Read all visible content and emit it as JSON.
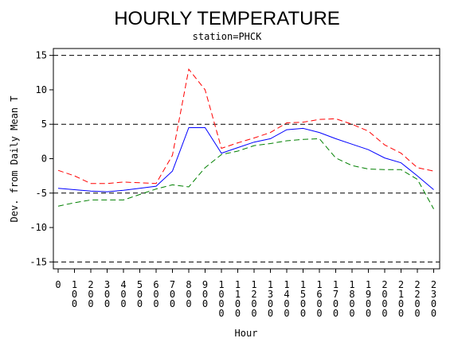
{
  "chart_data": {
    "type": "line",
    "title": "HOURLY TEMPERATURE",
    "subtitle": "station=PHCK",
    "xlabel": "Hour",
    "ylabel": "Dev. from Daily Mean T",
    "x": [
      0,
      100,
      200,
      300,
      400,
      500,
      600,
      700,
      800,
      900,
      1000,
      1100,
      1200,
      1300,
      1400,
      1500,
      1600,
      1700,
      1800,
      1900,
      2000,
      2100,
      2200,
      2300
    ],
    "x_tick_labels": [
      "0",
      "100",
      "200",
      "300",
      "400",
      "500",
      "600",
      "700",
      "800",
      "900",
      "1000",
      "1100",
      "1200",
      "1300",
      "1400",
      "1500",
      "1600",
      "1700",
      "1800",
      "1900",
      "2000",
      "2100",
      "2200",
      "2300"
    ],
    "ylim": [
      -16,
      16
    ],
    "y_ticks": [
      -15,
      -10,
      -5,
      0,
      5,
      10,
      15
    ],
    "reference_lines": [
      -15,
      -5,
      5,
      15
    ],
    "series": [
      {
        "color": "#ff0000",
        "dash": "dashed",
        "values": [
          -1.7,
          -2.5,
          -3.6,
          -3.6,
          -3.4,
          -3.5,
          -3.6,
          0.5,
          13.0,
          10.0,
          1.5,
          2.3,
          3.0,
          3.8,
          5.2,
          5.3,
          5.7,
          5.8,
          5.0,
          4.0,
          2.0,
          0.8,
          -1.3,
          -1.8
        ]
      },
      {
        "color": "#0000ff",
        "dash": "solid",
        "values": [
          -4.3,
          -4.5,
          -4.7,
          -4.8,
          -4.6,
          -4.3,
          -4.0,
          -1.8,
          4.5,
          4.5,
          0.8,
          1.6,
          2.4,
          2.9,
          4.2,
          4.4,
          3.8,
          2.9,
          2.1,
          1.3,
          0.1,
          -0.6,
          -2.5,
          -4.5
        ]
      },
      {
        "color": "#008000",
        "dash": "dashed",
        "values": [
          -6.9,
          -6.4,
          -6.0,
          -6.0,
          -6.0,
          -5.2,
          -4.4,
          -3.8,
          -4.1,
          -1.3,
          0.6,
          1.1,
          1.9,
          2.2,
          2.6,
          2.8,
          2.9,
          0.1,
          -1.0,
          -1.5,
          -1.6,
          -1.6,
          -3.0,
          -7.3
        ]
      }
    ]
  }
}
